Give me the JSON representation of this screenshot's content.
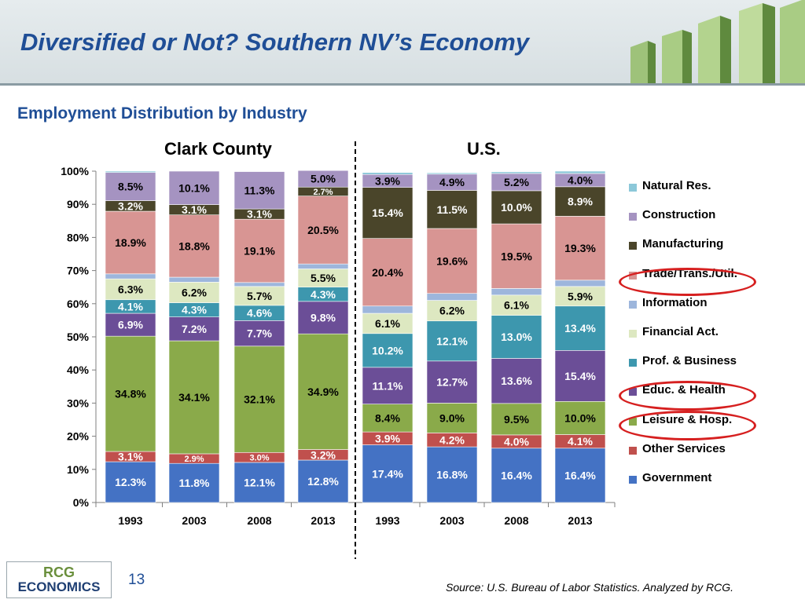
{
  "slide": {
    "title": "Diversified or Not? Southern NV’s Economy",
    "subtitle": "Employment Distribution by Industry",
    "page_number": "13",
    "source": "Source: U.S. Bureau of Labor Statistics. Analyzed by RCG.",
    "logo": {
      "line1": "RCG",
      "line2": "ECONOMICS"
    }
  },
  "chart_data": {
    "type": "bar",
    "stacked": "percent",
    "groups": [
      {
        "label": "Clark County",
        "categories": [
          "1993",
          "2003",
          "2008",
          "2013"
        ]
      },
      {
        "label": "U.S.",
        "categories": [
          "1993",
          "2003",
          "2008",
          "2013"
        ]
      }
    ],
    "categories": [
      "1993",
      "2003",
      "2008",
      "2013",
      "1993",
      "2003",
      "2008",
      "2013"
    ],
    "ylim": [
      0,
      100
    ],
    "yticks": [
      "0%",
      "10%",
      "20%",
      "30%",
      "40%",
      "50%",
      "60%",
      "70%",
      "80%",
      "90%",
      "100%"
    ],
    "grid": false,
    "legend_position": "right",
    "series": [
      {
        "name": "Government",
        "color": "#4472c4",
        "values": [
          12.3,
          11.8,
          12.1,
          12.8,
          17.4,
          16.8,
          16.4,
          16.4
        ],
        "labels": [
          "12.3%",
          "11.8%",
          "12.1%",
          "12.8%",
          "17.4%",
          "16.8%",
          "16.4%",
          "16.4%"
        ]
      },
      {
        "name": "Other Services",
        "color": "#c0504d",
        "values": [
          3.1,
          2.9,
          3.0,
          3.2,
          3.9,
          4.2,
          4.0,
          4.1
        ],
        "labels": [
          "3.1%",
          "2.9%",
          "3.0%",
          "3.2%",
          "3.9%",
          "4.2%",
          "4.0%",
          "4.1%"
        ]
      },
      {
        "name": "Leisure & Hosp.",
        "color": "#8aaa4a",
        "values": [
          34.8,
          34.1,
          32.1,
          34.9,
          8.4,
          9.0,
          9.5,
          10.0
        ],
        "labels": [
          "34.8%",
          "34.1%",
          "32.1%",
          "34.9%",
          "8.4%",
          "9.0%",
          "9.5%",
          "10.0%"
        ]
      },
      {
        "name": "Educ. & Health",
        "color": "#6b4e97",
        "values": [
          6.9,
          7.2,
          7.7,
          9.8,
          11.1,
          12.7,
          13.6,
          15.4
        ],
        "labels": [
          "6.9%",
          "7.2%",
          "7.7%",
          "9.8%",
          "11.1%",
          "12.7%",
          "13.6%",
          "15.4%"
        ]
      },
      {
        "name": "Prof. & Business",
        "color": "#3d97ae",
        "values": [
          4.1,
          4.3,
          4.6,
          4.3,
          10.2,
          12.1,
          13.0,
          13.4
        ],
        "labels": [
          "4.1%",
          "4.3%",
          "4.6%",
          "4.3%",
          "10.2%",
          "12.1%",
          "13.0%",
          "13.4%"
        ]
      },
      {
        "name": "Financial Act.",
        "color": "#dde8c1",
        "values": [
          6.3,
          6.2,
          5.7,
          5.5,
          6.1,
          6.2,
          6.1,
          5.9
        ],
        "labels": [
          "6.3%",
          "6.2%",
          "5.7%",
          "5.5%",
          "6.1%",
          "6.2%",
          "6.1%",
          "5.9%"
        ]
      },
      {
        "name": "Information",
        "color": "#9db6dc",
        "values": [
          1.5,
          1.5,
          1.2,
          1.5,
          2.2,
          2.1,
          2.0,
          1.9
        ],
        "labels": [
          "",
          "",
          "",
          "",
          "",
          "",
          "",
          ""
        ]
      },
      {
        "name": "Trade/Trans./Util.",
        "color": "#d89593",
        "values": [
          18.9,
          18.8,
          19.1,
          20.5,
          20.4,
          19.6,
          19.5,
          19.3
        ],
        "labels": [
          "18.9%",
          "18.8%",
          "19.1%",
          "20.5%",
          "20.4%",
          "19.6%",
          "19.5%",
          "19.3%"
        ]
      },
      {
        "name": "Manufacturing",
        "color": "#4a452a",
        "values": [
          3.2,
          3.1,
          3.1,
          2.7,
          15.4,
          11.5,
          10.0,
          8.9
        ],
        "labels": [
          "3.2%",
          "3.1%",
          "3.1%",
          "2.7%",
          "15.4%",
          "11.5%",
          "10.0%",
          "8.9%"
        ]
      },
      {
        "name": "Construction",
        "color": "#a593c1",
        "values": [
          8.5,
          10.1,
          11.3,
          5.0,
          3.9,
          4.9,
          5.2,
          4.0
        ],
        "labels": [
          "8.5%",
          "10.1%",
          "11.3%",
          "5.0%",
          "3.9%",
          "4.9%",
          "5.2%",
          "4.0%"
        ]
      },
      {
        "name": "Natural Res.",
        "color": "#8cc8d9",
        "values": [
          0.4,
          0.0,
          0.1,
          0.0,
          0.6,
          0.4,
          0.5,
          0.7
        ],
        "labels": [
          "",
          "",
          "",
          "",
          "",
          "",
          "",
          ""
        ]
      }
    ],
    "legend_order": [
      "Natural Res.",
      "Construction",
      "Manufacturing",
      "Trade/Trans./Util.",
      "Information",
      "Financial Act.",
      "Prof. & Business",
      "Educ. & Health",
      "Leisure & Hosp.",
      "Other Services",
      "Government"
    ],
    "highlighted": [
      "Trade/Trans./Util.",
      "Educ. & Health",
      "Leisure & Hosp."
    ]
  }
}
